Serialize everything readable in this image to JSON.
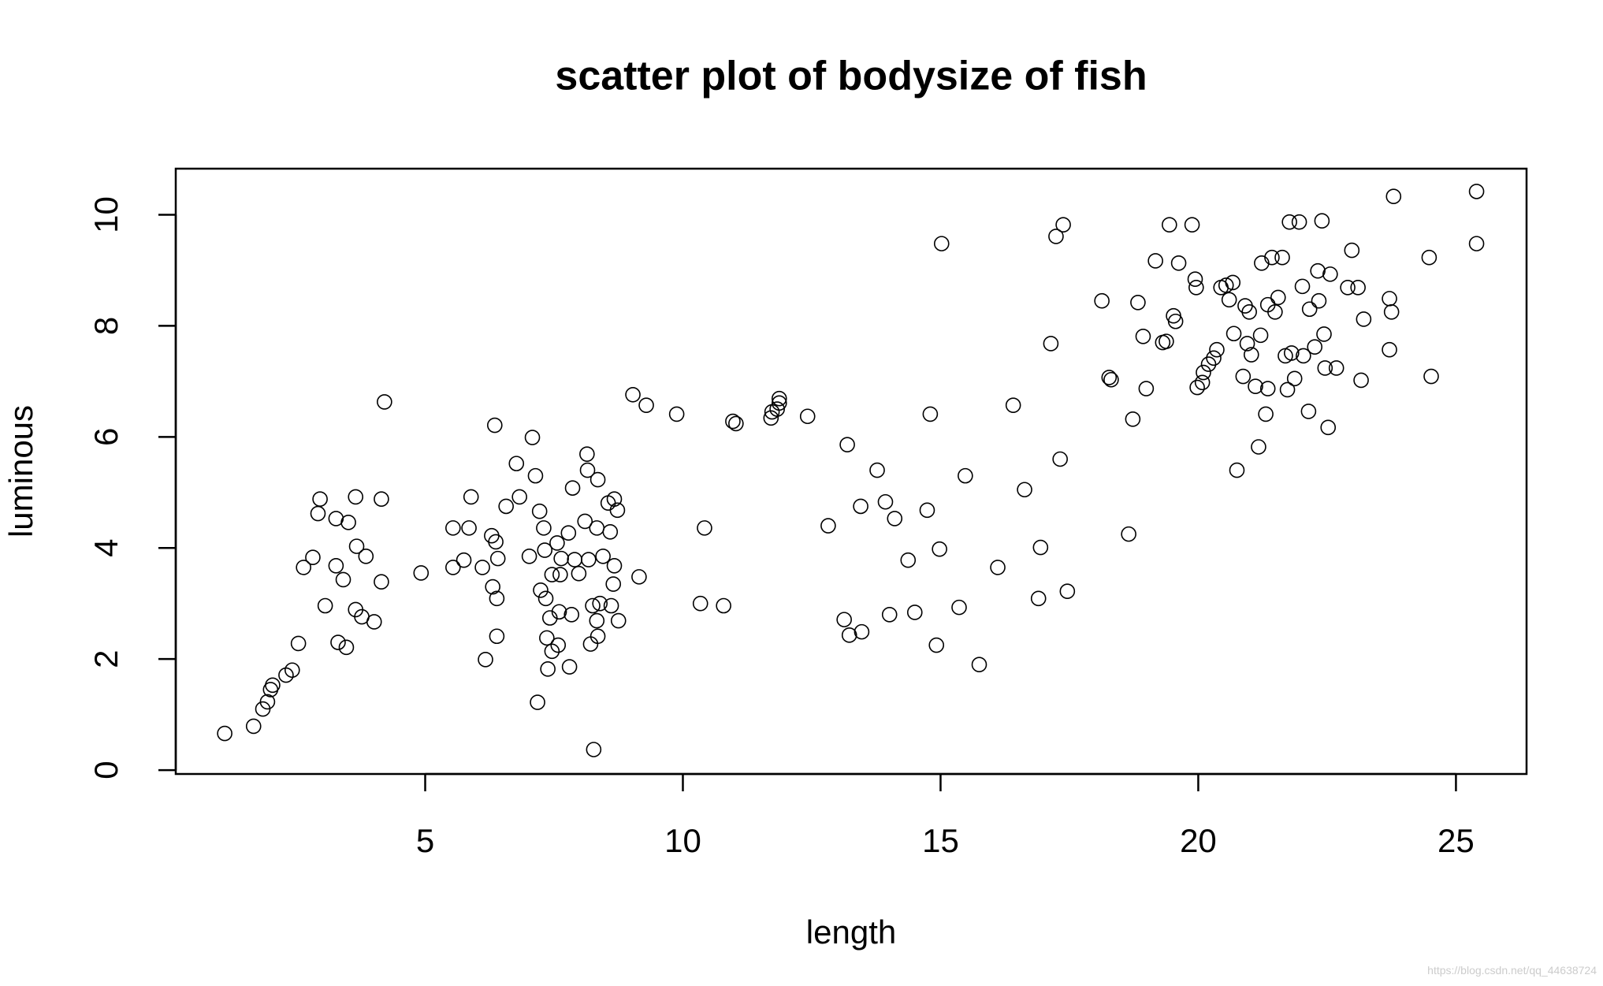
{
  "chart_data": {
    "type": "scatter",
    "title": "scatter plot of bodysize of fish",
    "x_label": "length",
    "y_label": "luminous",
    "watermark": "https://blog.csdn.net/qq_44638724",
    "color": "#000000",
    "xlim": [
      0.16,
      26.37
    ],
    "ylim": [
      -0.07,
      10.83
    ],
    "xticks": [
      5,
      10,
      15,
      20,
      25
    ],
    "yticks": [
      0,
      2,
      4,
      6,
      8,
      10
    ],
    "x": [
      1.11,
      1.67,
      1.85,
      1.94,
      2.0,
      2.04,
      2.3,
      2.42,
      2.54,
      2.64,
      2.82,
      2.96,
      2.92,
      3.06,
      3.27,
      3.27,
      3.31,
      3.41,
      3.47,
      3.51,
      3.65,
      3.67,
      3.65,
      3.77,
      3.85,
      4.01,
      4.15,
      4.15,
      4.21,
      4.92,
      5.54,
      5.54,
      5.75,
      5.85,
      5.89,
      6.11,
      6.17,
      6.29,
      6.31,
      6.35,
      6.37,
      6.39,
      6.39,
      6.41,
      6.57,
      6.77,
      6.83,
      7.02,
      7.08,
      7.14,
      7.18,
      7.22,
      7.24,
      7.3,
      7.32,
      7.34,
      7.36,
      7.38,
      7.42,
      7.46,
      7.46,
      7.56,
      7.58,
      7.6,
      7.62,
      7.64,
      7.78,
      7.8,
      7.84,
      7.86,
      7.9,
      7.98,
      8.1,
      8.14,
      8.15,
      8.17,
      8.21,
      8.25,
      8.27,
      8.33,
      8.35,
      8.33,
      8.35,
      8.39,
      8.45,
      8.55,
      8.59,
      8.61,
      8.65,
      8.67,
      8.67,
      8.73,
      8.75,
      9.15,
      9.03,
      9.29,
      9.88,
      10.34,
      10.42,
      10.79,
      10.97,
      11.03,
      11.71,
      11.73,
      11.83,
      11.87,
      11.87,
      12.42,
      12.82,
      13.13,
      13.19,
      13.23,
      13.45,
      13.47,
      13.77,
      13.93,
      14.01,
      14.11,
      14.37,
      14.5,
      14.74,
      14.8,
      14.92,
      14.98,
      15.02,
      15.36,
      15.48,
      15.75,
      16.11,
      16.41,
      16.63,
      16.9,
      16.94,
      17.14,
      17.24,
      17.38,
      17.32,
      17.46,
      18.13,
      18.27,
      18.31,
      18.65,
      18.73,
      18.83,
      18.93,
      18.99,
      19.17,
      19.31,
      19.38,
      19.44,
      19.52,
      19.56,
      19.62,
      19.88,
      19.94,
      19.96,
      19.98,
      20.08,
      20.1,
      20.2,
      20.3,
      20.36,
      20.44,
      20.54,
      20.6,
      20.67,
      20.69,
      20.75,
      20.87,
      20.91,
      20.95,
      20.99,
      21.03,
      21.11,
      21.17,
      21.21,
      21.23,
      21.31,
      21.35,
      21.35,
      21.43,
      21.49,
      21.55,
      21.63,
      21.69,
      21.73,
      21.77,
      21.81,
      21.87,
      21.96,
      22.02,
      22.04,
      22.14,
      22.16,
      22.26,
      22.32,
      22.34,
      22.4,
      22.44,
      22.46,
      22.52,
      22.56,
      22.68,
      22.9,
      22.98,
      23.1,
      23.16,
      23.21,
      23.71,
      23.71,
      23.75,
      23.79,
      24.48,
      24.52,
      25.4,
      25.4
    ],
    "y": [
      0.66,
      0.79,
      1.1,
      1.23,
      1.45,
      1.53,
      1.71,
      1.8,
      2.28,
      3.65,
      3.83,
      4.88,
      4.62,
      2.96,
      4.53,
      3.68,
      2.3,
      3.43,
      2.21,
      4.46,
      4.92,
      4.03,
      2.89,
      2.76,
      3.85,
      2.67,
      4.88,
      3.39,
      6.63,
      3.55,
      4.36,
      3.65,
      3.78,
      4.36,
      4.92,
      3.65,
      1.99,
      4.22,
      3.3,
      6.21,
      4.11,
      3.09,
      2.41,
      3.81,
      4.75,
      5.52,
      4.92,
      3.85,
      5.99,
      5.3,
      1.22,
      4.66,
      3.24,
      4.36,
      3.96,
      3.09,
      2.38,
      1.82,
      2.74,
      3.52,
      2.14,
      4.09,
      2.25,
      2.85,
      3.52,
      3.81,
      4.27,
      1.86,
      2.8,
      5.08,
      3.79,
      3.54,
      4.48,
      5.69,
      5.4,
      3.79,
      2.27,
      2.96,
      0.37,
      4.36,
      5.23,
      2.69,
      2.41,
      3.0,
      3.85,
      4.81,
      4.29,
      2.96,
      3.35,
      3.68,
      4.88,
      4.68,
      2.69,
      3.48,
      6.76,
      6.57,
      6.41,
      3.0,
      4.36,
      2.96,
      6.28,
      6.24,
      6.34,
      6.45,
      6.5,
      6.69,
      6.61,
      6.37,
      4.4,
      2.71,
      5.86,
      2.43,
      4.75,
      2.49,
      5.4,
      4.83,
      2.8,
      4.53,
      3.78,
      2.84,
      4.68,
      6.41,
      2.25,
      3.98,
      9.48,
      2.93,
      5.3,
      1.9,
      3.65,
      6.57,
      5.05,
      3.09,
      4.01,
      7.68,
      9.61,
      9.82,
      5.6,
      3.22,
      8.45,
      7.07,
      7.03,
      4.25,
      6.32,
      8.42,
      7.81,
      6.87,
      9.17,
      7.7,
      7.72,
      9.82,
      8.18,
      8.08,
      9.13,
      9.82,
      8.84,
      8.69,
      6.89,
      6.98,
      7.16,
      7.31,
      7.42,
      7.57,
      8.69,
      8.73,
      8.47,
      8.78,
      7.86,
      5.4,
      7.09,
      8.36,
      7.68,
      8.25,
      7.48,
      6.91,
      5.82,
      7.83,
      9.13,
      6.41,
      6.87,
      8.38,
      9.23,
      8.25,
      8.51,
      9.23,
      7.46,
      6.85,
      9.87,
      7.51,
      7.05,
      9.87,
      8.71,
      7.46,
      6.46,
      8.3,
      7.62,
      8.99,
      8.45,
      9.89,
      7.85,
      7.24,
      6.17,
      8.93,
      7.24,
      8.69,
      9.36,
      8.69,
      7.02,
      8.12,
      8.49,
      7.57,
      8.25,
      10.33,
      9.23,
      7.09,
      10.42,
      9.48
    ]
  }
}
